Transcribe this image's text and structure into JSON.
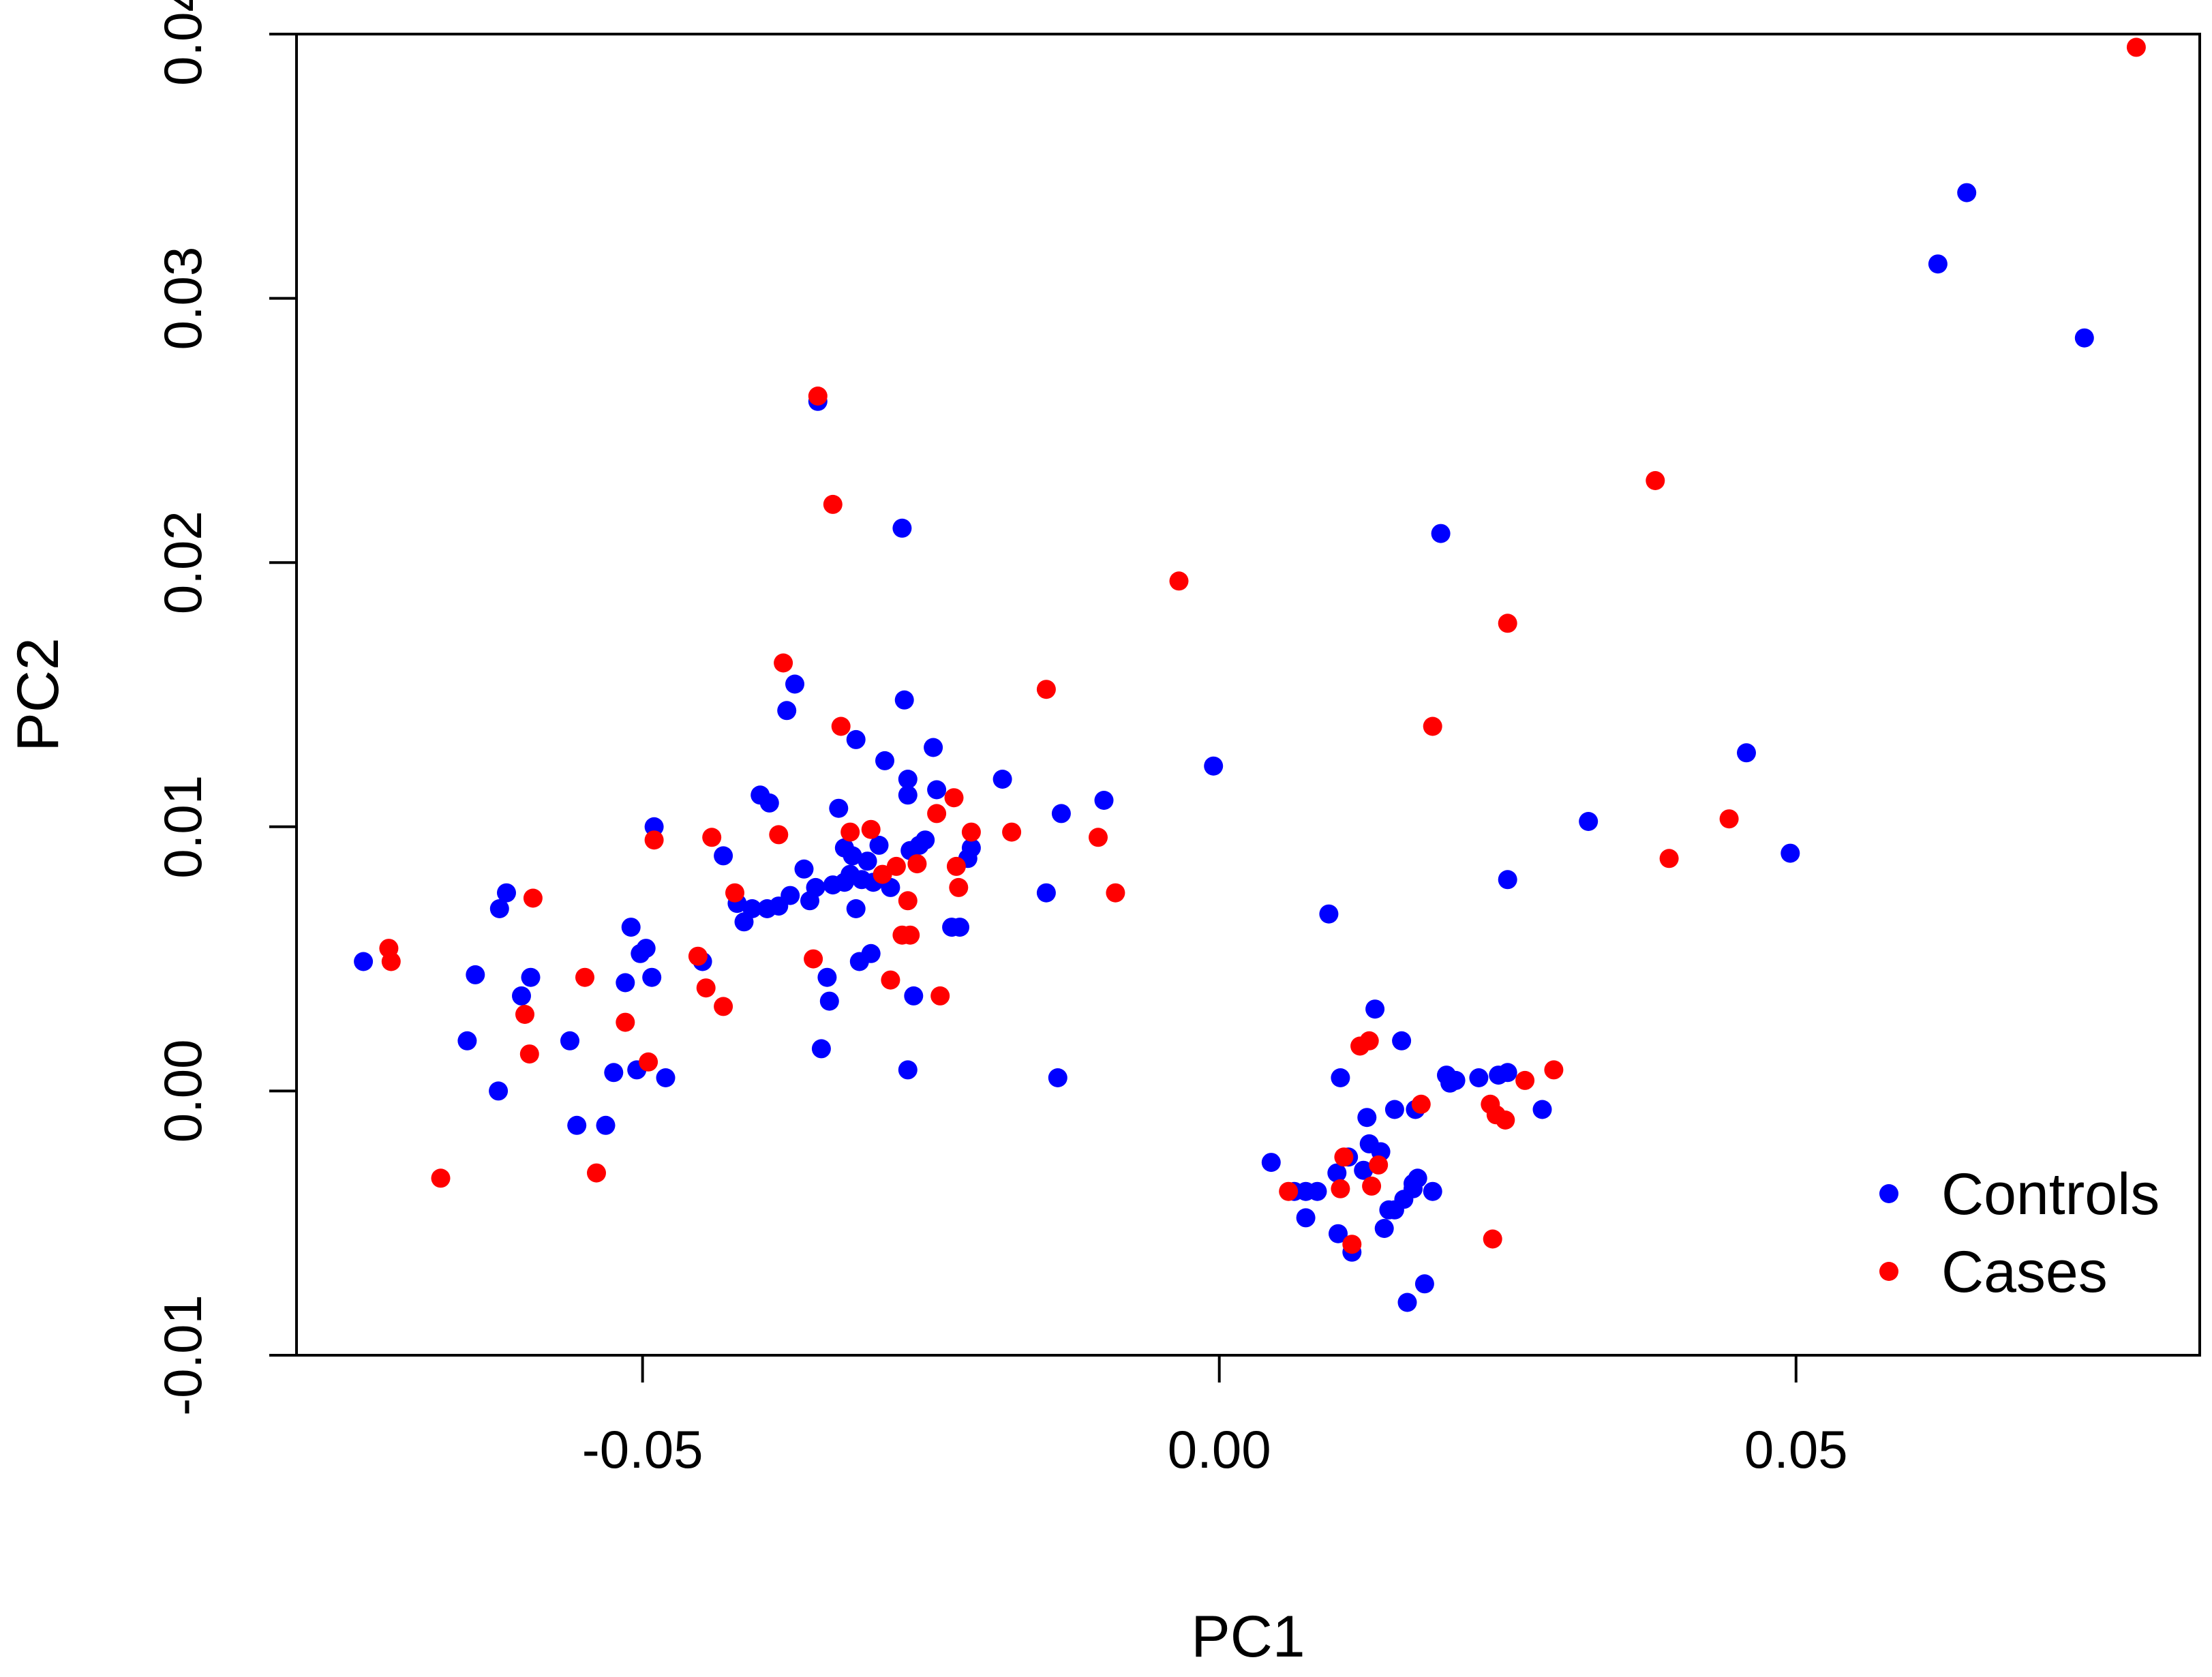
{
  "chart_data": {
    "type": "scatter",
    "xlabel": "PC1",
    "ylabel": "PC2",
    "xlim": [
      -0.08,
      0.085
    ],
    "ylim": [
      -0.01,
      0.04
    ],
    "x_ticks": [
      -0.05,
      0.0,
      0.05
    ],
    "x_tick_labels": [
      "-0.05",
      "0.00",
      "0.05"
    ],
    "y_ticks": [
      -0.01,
      0.0,
      0.01,
      0.02,
      0.03,
      0.04
    ],
    "y_tick_labels": [
      "-0.01",
      "0.00",
      "0.01",
      "0.02",
      "0.03",
      "0.04"
    ],
    "grid": false,
    "legend_position": "bottom-right",
    "series": [
      {
        "name": "Controls",
        "color": "#0000FF",
        "points": [
          [
            -0.0742,
            0.0049
          ],
          [
            -0.0645,
            0.0044
          ],
          [
            -0.0652,
            0.0019
          ],
          [
            -0.0624,
            0.0069
          ],
          [
            -0.0618,
            0.0075
          ],
          [
            -0.0605,
            0.0036
          ],
          [
            -0.0597,
            0.0043
          ],
          [
            -0.0625,
            0.0
          ],
          [
            -0.0563,
            0.0019
          ],
          [
            -0.0557,
            -0.0013
          ],
          [
            -0.0532,
            -0.0013
          ],
          [
            -0.0525,
            0.0007
          ],
          [
            -0.0515,
            0.0041
          ],
          [
            -0.051,
            0.0062
          ],
          [
            -0.0502,
            0.0052
          ],
          [
            -0.0497,
            0.0054
          ],
          [
            -0.0492,
            0.0043
          ],
          [
            -0.0505,
            0.0008
          ],
          [
            -0.049,
            0.01
          ],
          [
            -0.048,
            0.0005
          ],
          [
            -0.0448,
            0.0049
          ],
          [
            -0.043,
            0.0089
          ],
          [
            -0.0418,
            0.0071
          ],
          [
            -0.0412,
            0.0064
          ],
          [
            -0.0405,
            0.0069
          ],
          [
            -0.0398,
            0.0112
          ],
          [
            -0.039,
            0.0109
          ],
          [
            -0.0392,
            0.0069
          ],
          [
            -0.0382,
            0.007
          ],
          [
            -0.0375,
            0.0144
          ],
          [
            -0.0372,
            0.0074
          ],
          [
            -0.0368,
            0.0154
          ],
          [
            -0.036,
            0.0084
          ],
          [
            -0.0355,
            0.0072
          ],
          [
            -0.035,
            0.0077
          ],
          [
            -0.0348,
            0.0261
          ],
          [
            -0.0345,
            0.0016
          ],
          [
            -0.034,
            0.0043
          ],
          [
            -0.0338,
            0.0034
          ],
          [
            -0.0335,
            0.0078
          ],
          [
            -0.033,
            0.0107
          ],
          [
            -0.0325,
            0.0079
          ],
          [
            -0.0325,
            0.0092
          ],
          [
            -0.032,
            0.0082
          ],
          [
            -0.0318,
            0.0089
          ],
          [
            -0.0315,
            0.0069
          ],
          [
            -0.0315,
            0.0133
          ],
          [
            -0.0312,
            0.0049
          ],
          [
            -0.031,
            0.008
          ],
          [
            -0.0305,
            0.0087
          ],
          [
            -0.0302,
            0.0052
          ],
          [
            -0.03,
            0.0079
          ],
          [
            -0.0295,
            0.0093
          ],
          [
            -0.029,
            0.0125
          ],
          [
            -0.0285,
            0.0077
          ],
          [
            -0.0275,
            0.0213
          ],
          [
            -0.0273,
            0.0148
          ],
          [
            -0.027,
            0.0112
          ],
          [
            -0.027,
            0.0118
          ],
          [
            -0.0268,
            0.0091
          ],
          [
            -0.0265,
            0.0036
          ],
          [
            -0.026,
            0.0093
          ],
          [
            -0.0255,
            0.0095
          ],
          [
            -0.0248,
            0.013
          ],
          [
            -0.0245,
            0.0114
          ],
          [
            -0.0232,
            0.0062
          ],
          [
            -0.0225,
            0.0062
          ],
          [
            -0.0218,
            0.0088
          ],
          [
            -0.0215,
            0.0092
          ],
          [
            -0.0188,
            0.0118
          ],
          [
            -0.015,
            0.0075
          ],
          [
            -0.0137,
            0.0105
          ],
          [
            -0.014,
            0.0005
          ],
          [
            -0.01,
            0.011
          ],
          [
            -0.027,
            0.0008
          ],
          [
            -0.0005,
            0.0123
          ],
          [
            0.0045,
            -0.0027
          ],
          [
            0.0065,
            -0.0038
          ],
          [
            0.0075,
            -0.0038
          ],
          [
            0.0075,
            -0.0048
          ],
          [
            0.0085,
            -0.0038
          ],
          [
            0.0095,
            0.0067
          ],
          [
            0.0102,
            -0.0031
          ],
          [
            0.0105,
            0.0005
          ],
          [
            0.0103,
            -0.0054
          ],
          [
            0.0112,
            -0.0025
          ],
          [
            0.0115,
            -0.0061
          ],
          [
            0.0125,
            -0.003
          ],
          [
            0.0128,
            -0.001
          ],
          [
            0.0135,
            0.0031
          ],
          [
            0.013,
            -0.002
          ],
          [
            0.014,
            -0.0023
          ],
          [
            0.0143,
            -0.0052
          ],
          [
            0.0147,
            -0.0045
          ],
          [
            0.0152,
            -0.0007
          ],
          [
            0.0152,
            -0.0045
          ],
          [
            0.0158,
            0.0019
          ],
          [
            0.016,
            -0.0041
          ],
          [
            0.0163,
            -0.008
          ],
          [
            0.0168,
            -0.0037
          ],
          [
            0.0168,
            -0.0035
          ],
          [
            0.0172,
            -0.0033
          ],
          [
            0.017,
            -0.0007
          ],
          [
            0.0178,
            -0.0073
          ],
          [
            0.0185,
            -0.0038
          ],
          [
            0.0192,
            0.0211
          ],
          [
            0.0197,
            0.0006
          ],
          [
            0.02,
            0.0003
          ],
          [
            0.0205,
            0.0004
          ],
          [
            0.0225,
            0.0005
          ],
          [
            0.0242,
            0.0006
          ],
          [
            0.025,
            0.0007
          ],
          [
            0.025,
            0.008
          ],
          [
            0.028,
            -0.0007
          ],
          [
            0.032,
            0.0102
          ],
          [
            0.0457,
            0.0128
          ],
          [
            0.0495,
            0.009
          ],
          [
            0.0623,
            0.0313
          ],
          [
            0.0648,
            0.034
          ],
          [
            0.075,
            0.0285
          ]
        ]
      },
      {
        "name": "Cases",
        "color": "#FF0000",
        "points": [
          [
            -0.072,
            0.0054
          ],
          [
            -0.0718,
            0.0049
          ],
          [
            -0.0675,
            -0.0033
          ],
          [
            -0.0602,
            0.0029
          ],
          [
            -0.0595,
            0.0073
          ],
          [
            -0.0598,
            0.0014
          ],
          [
            -0.055,
            0.0043
          ],
          [
            -0.054,
            -0.0031
          ],
          [
            -0.0515,
            0.0026
          ],
          [
            -0.0495,
            0.0011
          ],
          [
            -0.049,
            0.0095
          ],
          [
            -0.0452,
            0.0051
          ],
          [
            -0.0445,
            0.0039
          ],
          [
            -0.044,
            0.0096
          ],
          [
            -0.043,
            0.0032
          ],
          [
            -0.042,
            0.0075
          ],
          [
            -0.0382,
            0.0097
          ],
          [
            -0.0378,
            0.0162
          ],
          [
            -0.0352,
            0.005
          ],
          [
            -0.0348,
            0.0263
          ],
          [
            -0.0335,
            0.0222
          ],
          [
            -0.0328,
            0.0138
          ],
          [
            -0.032,
            0.0098
          ],
          [
            -0.0302,
            0.0099
          ],
          [
            -0.0292,
            0.0082
          ],
          [
            -0.0285,
            0.0042
          ],
          [
            -0.028,
            0.0085
          ],
          [
            -0.0275,
            0.0059
          ],
          [
            -0.027,
            0.0072
          ],
          [
            -0.0268,
            0.0059
          ],
          [
            -0.0262,
            0.0086
          ],
          [
            -0.0245,
            0.0105
          ],
          [
            -0.0242,
            0.0036
          ],
          [
            -0.023,
            0.0111
          ],
          [
            -0.0228,
            0.0085
          ],
          [
            -0.0226,
            0.0077
          ],
          [
            -0.0215,
            0.0098
          ],
          [
            -0.018,
            0.0098
          ],
          [
            -0.015,
            0.0152
          ],
          [
            -0.0105,
            0.0096
          ],
          [
            -0.009,
            0.0075
          ],
          [
            -0.0035,
            0.0193
          ],
          [
            0.006,
            -0.0038
          ],
          [
            0.0105,
            -0.0037
          ],
          [
            0.0108,
            -0.0025
          ],
          [
            0.0115,
            -0.0058
          ],
          [
            0.0122,
            0.0017
          ],
          [
            0.013,
            0.0019
          ],
          [
            0.0132,
            -0.0036
          ],
          [
            0.0138,
            -0.0028
          ],
          [
            0.0175,
            -0.0005
          ],
          [
            0.0185,
            0.0138
          ],
          [
            0.0235,
            -0.0005
          ],
          [
            0.0237,
            -0.0056
          ],
          [
            0.024,
            -0.0009
          ],
          [
            0.0248,
            -0.0011
          ],
          [
            0.025,
            0.0177
          ],
          [
            0.0265,
            0.0004
          ],
          [
            0.029,
            0.0008
          ],
          [
            0.0378,
            0.0231
          ],
          [
            0.039,
            0.0088
          ],
          [
            0.0442,
            0.0103
          ],
          [
            0.0795,
            0.0395
          ]
        ]
      }
    ]
  }
}
